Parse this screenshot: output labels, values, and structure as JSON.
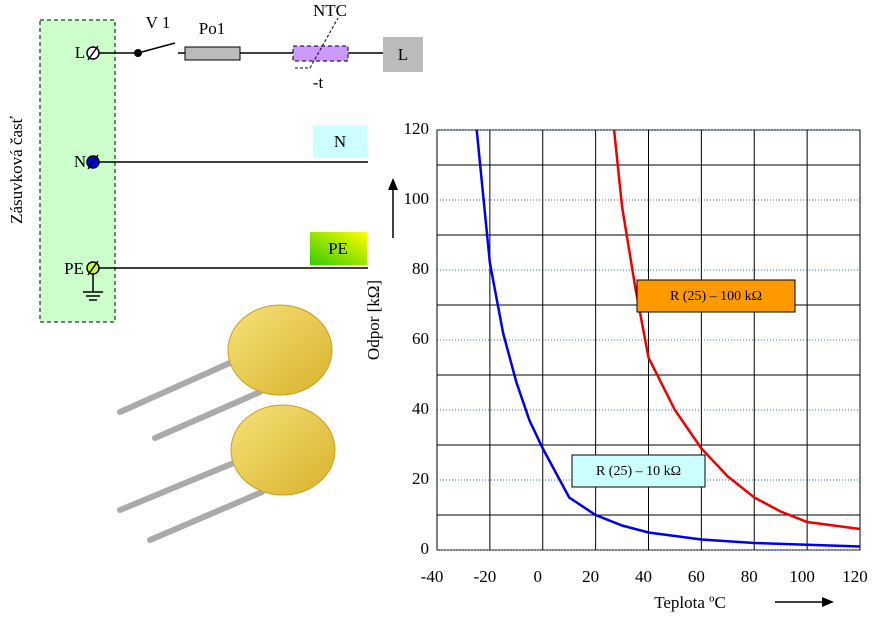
{
  "diagram": {
    "socket_label": "Zásuvková časť",
    "terminal_l": "L",
    "terminal_n": "N",
    "terminal_pe": "PE",
    "switch": "V 1",
    "fuse": "Po1",
    "ntc": "NTC",
    "ntc_temp": "-t",
    "out_l": "L",
    "out_n": "N",
    "out_pe": "PE"
  },
  "chart_data": {
    "type": "line",
    "y_label": "Odpor [kΩ]",
    "x_label": "Teplota ºC",
    "xlim": [
      -40,
      120
    ],
    "xticks": [
      -40,
      -20,
      0,
      20,
      40,
      60,
      80,
      100,
      120
    ],
    "ylim": [
      0,
      120
    ],
    "yticks": [
      0,
      20,
      40,
      60,
      80,
      100,
      120
    ],
    "y_minor_ticks": [
      10,
      30,
      50,
      70,
      90,
      110
    ],
    "grid": true,
    "series": [
      {
        "name": "R (25) – 10 kΩ",
        "color": "#0000ee",
        "label_color": "#ccffff",
        "x": [
          -25,
          -20,
          -15,
          -10,
          -5,
          0,
          10,
          20,
          30,
          40,
          60,
          80,
          100,
          120
        ],
        "values": [
          120,
          82,
          62,
          48,
          37,
          29,
          15,
          10,
          7,
          5,
          3,
          2,
          1.5,
          1
        ]
      },
      {
        "name": "R (25) – 100 kΩ",
        "color": "#ee0000",
        "label_color": "#ff9900",
        "x": [
          27,
          30,
          35,
          40,
          50,
          60,
          70,
          80,
          90,
          100,
          110,
          120
        ],
        "values": [
          120,
          98,
          75,
          55,
          40,
          29,
          21,
          15,
          11,
          8,
          7,
          6
        ]
      }
    ]
  }
}
